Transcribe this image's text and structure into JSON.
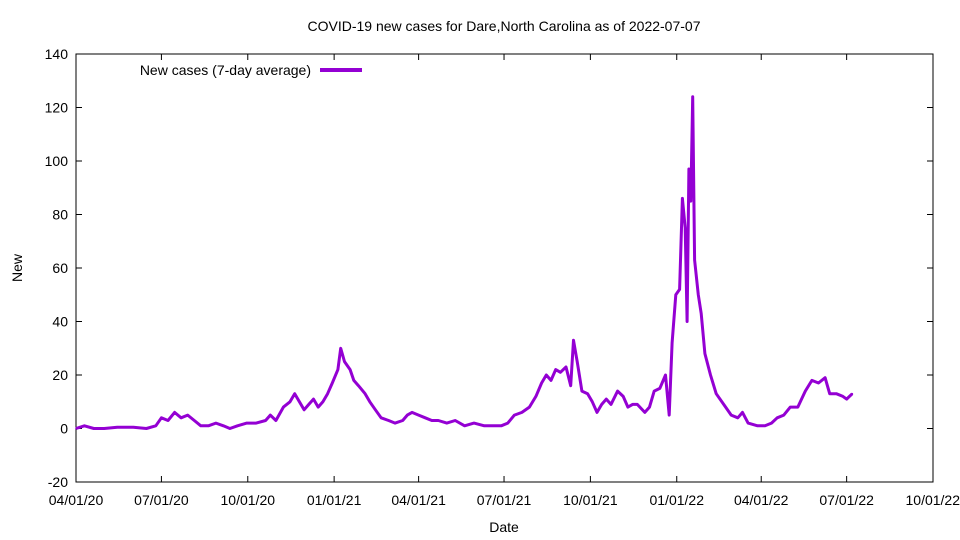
{
  "chart_data": {
    "type": "line",
    "title": "COVID-19 new cases for Dare,North Carolina as of 2022-07-07",
    "xlabel": "Date",
    "ylabel": "New",
    "ylim": [
      -20,
      140
    ],
    "xlim": [
      "2020-04-01",
      "2022-10-01"
    ],
    "y_ticks": [
      -20,
      0,
      20,
      40,
      60,
      80,
      100,
      120,
      140
    ],
    "x_ticks": [
      {
        "date": "2020-04-01",
        "label": "04/01/20"
      },
      {
        "date": "2020-07-01",
        "label": "07/01/20"
      },
      {
        "date": "2020-10-01",
        "label": "10/01/20"
      },
      {
        "date": "2021-01-01",
        "label": "01/01/21"
      },
      {
        "date": "2021-04-01",
        "label": "04/01/21"
      },
      {
        "date": "2021-07-01",
        "label": "07/01/21"
      },
      {
        "date": "2021-10-01",
        "label": "10/01/21"
      },
      {
        "date": "2022-01-01",
        "label": "01/01/22"
      },
      {
        "date": "2022-04-01",
        "label": "04/01/22"
      },
      {
        "date": "2022-07-01",
        "label": "07/01/22"
      },
      {
        "date": "2022-10-01",
        "label": "10/01/22"
      }
    ],
    "grid": false,
    "legend_position": "top-left",
    "series": [
      {
        "name": "New cases (7-day average)",
        "color": "#9400d3",
        "points": [
          [
            "2020-04-01",
            0
          ],
          [
            "2020-04-10",
            1
          ],
          [
            "2020-04-20",
            0
          ],
          [
            "2020-05-01",
            0
          ],
          [
            "2020-05-15",
            0.5
          ],
          [
            "2020-06-01",
            0.5
          ],
          [
            "2020-06-15",
            0
          ],
          [
            "2020-06-25",
            1
          ],
          [
            "2020-07-01",
            4
          ],
          [
            "2020-07-08",
            3
          ],
          [
            "2020-07-15",
            6
          ],
          [
            "2020-07-22",
            4
          ],
          [
            "2020-07-29",
            5
          ],
          [
            "2020-08-05",
            3
          ],
          [
            "2020-08-12",
            1
          ],
          [
            "2020-08-20",
            1
          ],
          [
            "2020-08-28",
            2
          ],
          [
            "2020-09-05",
            1
          ],
          [
            "2020-09-12",
            0
          ],
          [
            "2020-09-20",
            1
          ],
          [
            "2020-09-30",
            2
          ],
          [
            "2020-10-10",
            2
          ],
          [
            "2020-10-20",
            3
          ],
          [
            "2020-10-25",
            5
          ],
          [
            "2020-10-31",
            3
          ],
          [
            "2020-11-08",
            8
          ],
          [
            "2020-11-15",
            10
          ],
          [
            "2020-11-20",
            13
          ],
          [
            "2020-11-25",
            10
          ],
          [
            "2020-11-30",
            7
          ],
          [
            "2020-12-05",
            9
          ],
          [
            "2020-12-10",
            11
          ],
          [
            "2020-12-15",
            8
          ],
          [
            "2020-12-20",
            10
          ],
          [
            "2020-12-25",
            13
          ],
          [
            "2020-12-30",
            17
          ],
          [
            "2021-01-05",
            22
          ],
          [
            "2021-01-08",
            30
          ],
          [
            "2021-01-12",
            25
          ],
          [
            "2021-01-18",
            22
          ],
          [
            "2021-01-22",
            18
          ],
          [
            "2021-01-27",
            16
          ],
          [
            "2021-02-03",
            13
          ],
          [
            "2021-02-08",
            10
          ],
          [
            "2021-02-14",
            7
          ],
          [
            "2021-02-20",
            4
          ],
          [
            "2021-02-28",
            3
          ],
          [
            "2021-03-07",
            2
          ],
          [
            "2021-03-15",
            3
          ],
          [
            "2021-03-20",
            5
          ],
          [
            "2021-03-25",
            6
          ],
          [
            "2021-04-01",
            5
          ],
          [
            "2021-04-08",
            4
          ],
          [
            "2021-04-15",
            3
          ],
          [
            "2021-04-22",
            3
          ],
          [
            "2021-05-01",
            2
          ],
          [
            "2021-05-10",
            3
          ],
          [
            "2021-05-20",
            1
          ],
          [
            "2021-05-30",
            2
          ],
          [
            "2021-06-10",
            1
          ],
          [
            "2021-06-20",
            1
          ],
          [
            "2021-06-28",
            1
          ],
          [
            "2021-07-05",
            2
          ],
          [
            "2021-07-12",
            5
          ],
          [
            "2021-07-20",
            6
          ],
          [
            "2021-07-28",
            8
          ],
          [
            "2021-08-04",
            12
          ],
          [
            "2021-08-10",
            17
          ],
          [
            "2021-08-15",
            20
          ],
          [
            "2021-08-20",
            18
          ],
          [
            "2021-08-25",
            22
          ],
          [
            "2021-08-30",
            21
          ],
          [
            "2021-09-05",
            23
          ],
          [
            "2021-09-10",
            16
          ],
          [
            "2021-09-13",
            33
          ],
          [
            "2021-09-17",
            25
          ],
          [
            "2021-09-22",
            14
          ],
          [
            "2021-09-28",
            13
          ],
          [
            "2021-10-03",
            10
          ],
          [
            "2021-10-08",
            6
          ],
          [
            "2021-10-13",
            9
          ],
          [
            "2021-10-18",
            11
          ],
          [
            "2021-10-23",
            9
          ],
          [
            "2021-10-30",
            14
          ],
          [
            "2021-11-05",
            12
          ],
          [
            "2021-11-10",
            8
          ],
          [
            "2021-11-15",
            9
          ],
          [
            "2021-11-20",
            9
          ],
          [
            "2021-11-28",
            6
          ],
          [
            "2021-12-03",
            8
          ],
          [
            "2021-12-08",
            14
          ],
          [
            "2021-12-14",
            15
          ],
          [
            "2021-12-20",
            20
          ],
          [
            "2021-12-24",
            5
          ],
          [
            "2021-12-27",
            32
          ],
          [
            "2021-12-31",
            50
          ],
          [
            "2022-01-04",
            52
          ],
          [
            "2022-01-07",
            86
          ],
          [
            "2022-01-10",
            75
          ],
          [
            "2022-01-12",
            40
          ],
          [
            "2022-01-14",
            97
          ],
          [
            "2022-01-16",
            85
          ],
          [
            "2022-01-18",
            124
          ],
          [
            "2022-01-20",
            63
          ],
          [
            "2022-01-24",
            50
          ],
          [
            "2022-01-27",
            43
          ],
          [
            "2022-01-31",
            28
          ],
          [
            "2022-02-06",
            20
          ],
          [
            "2022-02-12",
            13
          ],
          [
            "2022-02-20",
            9
          ],
          [
            "2022-02-28",
            5
          ],
          [
            "2022-03-07",
            4
          ],
          [
            "2022-03-12",
            6
          ],
          [
            "2022-03-18",
            2
          ],
          [
            "2022-03-28",
            1
          ],
          [
            "2022-04-05",
            1
          ],
          [
            "2022-04-12",
            2
          ],
          [
            "2022-04-18",
            4
          ],
          [
            "2022-04-25",
            5
          ],
          [
            "2022-05-02",
            8
          ],
          [
            "2022-05-10",
            8
          ],
          [
            "2022-05-18",
            14
          ],
          [
            "2022-05-25",
            18
          ],
          [
            "2022-06-01",
            17
          ],
          [
            "2022-06-08",
            19
          ],
          [
            "2022-06-13",
            13
          ],
          [
            "2022-06-20",
            13
          ],
          [
            "2022-06-27",
            12
          ],
          [
            "2022-07-01",
            11
          ],
          [
            "2022-07-07",
            13
          ]
        ]
      }
    ]
  }
}
